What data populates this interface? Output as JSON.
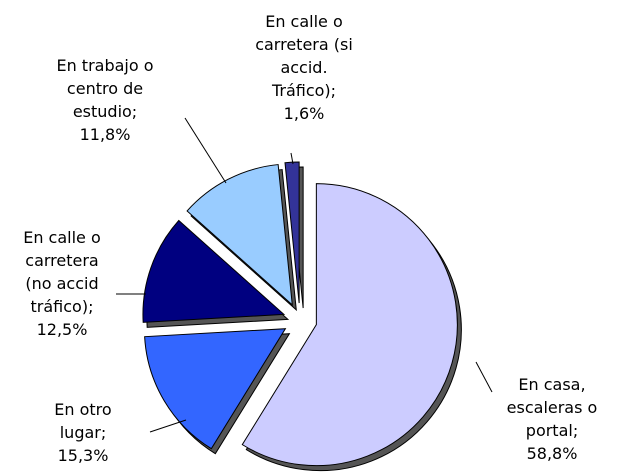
{
  "chart_data": {
    "type": "pie",
    "categories": [
      "En casa, escaleras o portal;",
      "En otro lugar;",
      "En calle o carretera (no accid tráfico);",
      "En trabajo o centro de estudio;",
      "En calle o carretera (si accid. Tráfico);"
    ],
    "values": [
      58.8,
      15.3,
      12.5,
      11.8,
      1.6
    ],
    "value_labels": [
      "58,8%",
      "15,3%",
      "12,5%",
      "11,8%",
      "1,6%"
    ],
    "colors": [
      "#ccccff",
      "#3366ff",
      "#000080",
      "#99ccff",
      "#333399"
    ]
  }
}
